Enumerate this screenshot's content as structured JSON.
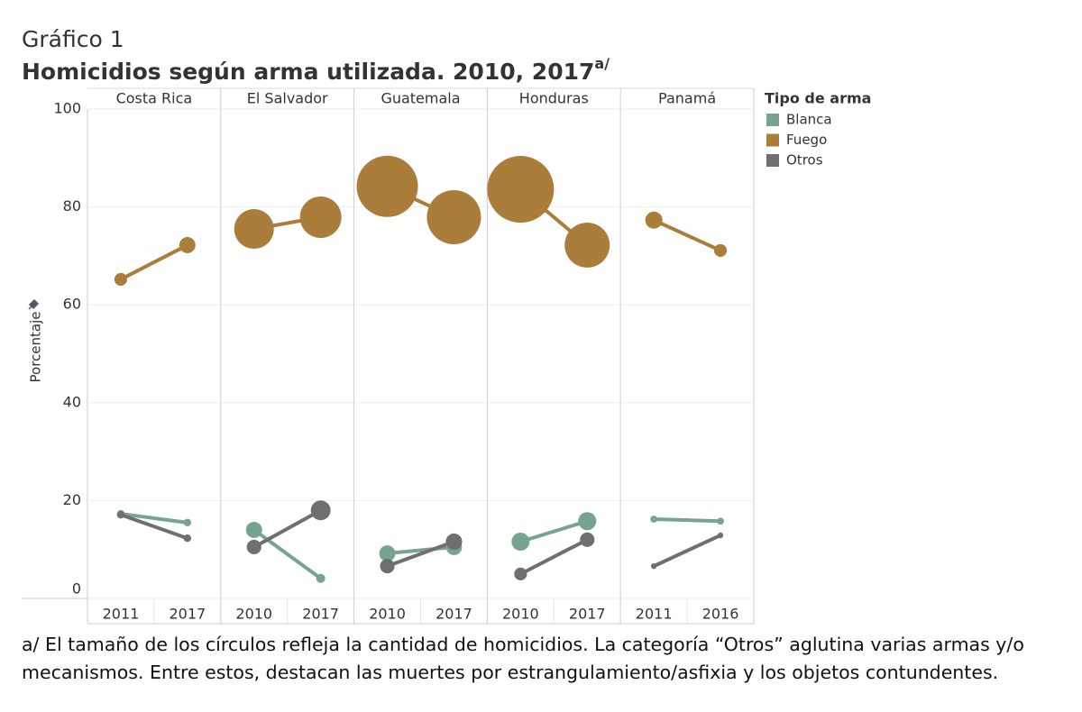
{
  "chart_data": {
    "type": "line",
    "kicker": "Gráfico 1",
    "title": "Homicidios según arma utilizada. 2010, 2017",
    "title_note": "a/",
    "y_label": "Porcentaje",
    "ylim": [
      0,
      100
    ],
    "yticks": [
      0,
      20,
      40,
      60,
      80,
      100
    ],
    "grid": true,
    "legend_title": "Tipo de arma",
    "legend_position": "right",
    "series": [
      {
        "name": "Blanca",
        "color": "#76a48f"
      },
      {
        "name": "Fuego",
        "color": "#ab7d3b"
      },
      {
        "name": "Otros",
        "color": "#6f6f6f"
      }
    ],
    "panels": [
      {
        "name": "Costa Rica",
        "categories": [
          "2011",
          "2017"
        ],
        "series": [
          {
            "values": [
              17.3,
              15.5
            ],
            "sizes": [
              70,
              70
            ]
          },
          {
            "values": [
              65.2,
              72.2
            ],
            "sizes": [
              200,
              320
            ]
          },
          {
            "values": [
              17.1,
              12.3
            ],
            "sizes": [
              70,
              70
            ]
          }
        ]
      },
      {
        "name": "El Salvador",
        "categories": [
          "2010",
          "2017"
        ],
        "series": [
          {
            "values": [
              14.0,
              4.1
            ],
            "sizes": [
              320,
              100
            ]
          },
          {
            "values": [
              75.5,
              77.9
            ],
            "sizes": [
              1940,
              2120
            ]
          },
          {
            "values": [
              10.5,
              18.0
            ],
            "sizes": [
              260,
              480
            ]
          }
        ]
      },
      {
        "name": "Guatemala",
        "categories": [
          "2010",
          "2017"
        ],
        "series": [
          {
            "values": [
              9.2,
              10.5
            ],
            "sizes": [
              320,
              320
            ]
          },
          {
            "values": [
              84.2,
              77.9
            ],
            "sizes": [
              4620,
              3600
            ]
          },
          {
            "values": [
              6.6,
              11.6
            ],
            "sizes": [
              260,
              330
            ]
          }
        ]
      },
      {
        "name": "Honduras",
        "categories": [
          "2010",
          "2017"
        ],
        "series": [
          {
            "values": [
              11.6,
              15.8
            ],
            "sizes": [
              400,
              400
            ]
          },
          {
            "values": [
              83.6,
              72.2
            ],
            "sizes": [
              5480,
              2500
            ]
          },
          {
            "values": [
              5.0,
              12.0
            ],
            "sizes": [
              200,
              260
            ]
          }
        ]
      },
      {
        "name": "Panamá",
        "categories": [
          "2011",
          "2016"
        ],
        "series": [
          {
            "values": [
              16.2,
              15.8
            ],
            "sizes": [
              60,
              60
            ]
          },
          {
            "values": [
              77.3,
              71.1
            ],
            "sizes": [
              360,
              200
            ]
          },
          {
            "values": [
              6.6,
              12.9
            ],
            "sizes": [
              40,
              40
            ]
          }
        ]
      }
    ],
    "footnote": "a/ El tamaño de los círculos refleja la cantidad de homicidios. La categoría “Otros” aglutina varias armas y/o mecanismos. Entre estos, destacan las muertes por estrangulamiento/asfixia  y los objetos contundentes."
  }
}
